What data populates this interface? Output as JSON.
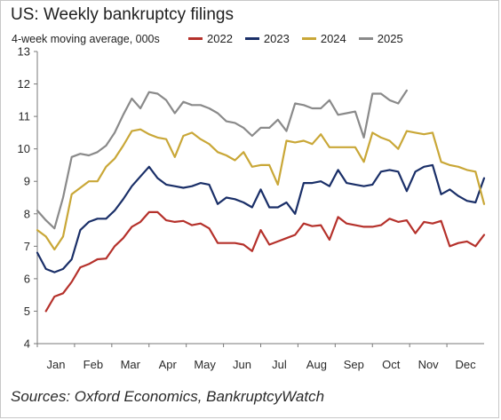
{
  "header": {
    "title": "US: Weekly bankruptcy filings",
    "subtitle": "4-week moving average, 000s"
  },
  "footer": {
    "source": "Sources: Oxford Economics, BankruptcyWatch"
  },
  "chart_data": {
    "type": "line",
    "title": "US: Weekly bankruptcy filings",
    "subtitle": "4-week moving average, 000s",
    "xlabel": "",
    "ylabel": "",
    "x_tick_labels": [
      "Jan",
      "Feb",
      "Mar",
      "Apr",
      "May",
      "Jun",
      "Jul",
      "Aug",
      "Sep",
      "Oct",
      "Nov",
      "Dec"
    ],
    "y_tick_labels": [
      "4",
      "5",
      "6",
      "7",
      "8",
      "9",
      "10",
      "11",
      "12",
      "13"
    ],
    "ylim": [
      4,
      13
    ],
    "xlim": [
      1,
      53
    ],
    "grid": false,
    "legend": "top",
    "series": [
      {
        "name": "2022",
        "color": "#b5312b",
        "x": [
          2,
          3,
          4,
          5,
          6,
          7,
          8,
          9,
          10,
          11,
          12,
          13,
          14,
          15,
          16,
          17,
          18,
          19,
          20,
          21,
          22,
          23,
          24,
          25,
          26,
          27,
          28,
          29,
          30,
          31,
          32,
          33,
          34,
          35,
          36,
          37,
          38,
          39,
          40,
          41,
          42,
          43,
          44,
          45,
          46,
          47,
          48,
          49,
          50,
          51,
          52,
          53
        ],
        "values": [
          5.0,
          5.45,
          5.55,
          5.9,
          6.35,
          6.45,
          6.6,
          6.62,
          7.0,
          7.25,
          7.6,
          7.75,
          8.05,
          8.05,
          7.8,
          7.75,
          7.78,
          7.65,
          7.7,
          7.55,
          7.1,
          7.1,
          7.1,
          7.05,
          6.85,
          7.5,
          7.05,
          7.15,
          7.25,
          7.35,
          7.7,
          7.62,
          7.65,
          7.2,
          7.9,
          7.7,
          7.65,
          7.6,
          7.6,
          7.65,
          7.85,
          7.75,
          7.8,
          7.4,
          7.75,
          7.7,
          7.78,
          7.0,
          7.1,
          7.15,
          7.0,
          7.35
        ]
      },
      {
        "name": "2023",
        "color": "#1a2f68",
        "x": [
          1,
          2,
          3,
          4,
          5,
          6,
          7,
          8,
          9,
          10,
          11,
          12,
          13,
          14,
          15,
          16,
          17,
          18,
          19,
          20,
          21,
          22,
          23,
          24,
          25,
          26,
          27,
          28,
          29,
          30,
          31,
          32,
          33,
          34,
          35,
          36,
          37,
          38,
          39,
          40,
          41,
          42,
          43,
          44,
          45,
          46,
          47,
          48,
          49,
          50,
          51,
          52,
          53
        ],
        "values": [
          6.8,
          6.3,
          6.2,
          6.3,
          6.6,
          7.5,
          7.75,
          7.85,
          7.85,
          8.1,
          8.45,
          8.85,
          9.15,
          9.45,
          9.1,
          8.9,
          8.85,
          8.8,
          8.85,
          8.95,
          8.9,
          8.3,
          8.5,
          8.45,
          8.35,
          8.2,
          8.75,
          8.2,
          8.2,
          8.35,
          8.0,
          8.95,
          8.95,
          9.0,
          8.85,
          9.35,
          8.95,
          8.9,
          8.85,
          8.9,
          9.3,
          9.35,
          9.3,
          8.7,
          9.3,
          9.45,
          9.5,
          8.6,
          8.75,
          8.55,
          8.4,
          8.35,
          9.1
        ]
      },
      {
        "name": "2024",
        "color": "#c9a737",
        "x": [
          1,
          2,
          3,
          4,
          5,
          6,
          7,
          8,
          9,
          10,
          11,
          12,
          13,
          14,
          15,
          16,
          17,
          18,
          19,
          20,
          21,
          22,
          23,
          24,
          25,
          26,
          27,
          28,
          29,
          30,
          31,
          32,
          33,
          34,
          35,
          36,
          37,
          38,
          39,
          40,
          41,
          42,
          43,
          44,
          45,
          46,
          47,
          48,
          49,
          50,
          51,
          52,
          53
        ],
        "values": [
          7.5,
          7.3,
          6.9,
          7.3,
          8.6,
          8.8,
          9.0,
          9.0,
          9.45,
          9.7,
          10.1,
          10.55,
          10.6,
          10.45,
          10.35,
          10.3,
          9.75,
          10.4,
          10.5,
          10.3,
          10.15,
          9.9,
          9.8,
          9.65,
          9.9,
          9.45,
          9.5,
          9.5,
          8.9,
          10.25,
          10.2,
          10.25,
          10.15,
          10.45,
          10.05,
          10.05,
          10.05,
          10.05,
          9.6,
          10.5,
          10.35,
          10.25,
          10.0,
          10.55,
          10.5,
          10.45,
          10.5,
          9.6,
          9.5,
          9.45,
          9.35,
          9.3,
          8.3
        ]
      },
      {
        "name": "2025",
        "color": "#8a8a8a",
        "x": [
          1,
          2,
          3,
          4,
          5,
          6,
          7,
          8,
          9,
          10,
          11,
          12,
          13,
          14,
          15,
          16,
          17,
          18,
          19,
          20,
          21,
          22,
          23,
          24,
          25,
          26,
          27,
          28,
          29,
          30,
          31,
          32,
          33,
          34,
          35,
          36,
          37,
          38,
          39,
          40,
          41,
          42,
          43,
          44,
          45,
          46
        ],
        "values": [
          8.1,
          7.8,
          7.55,
          8.5,
          9.75,
          9.85,
          9.8,
          9.9,
          10.1,
          10.5,
          11.05,
          11.55,
          11.25,
          11.75,
          11.7,
          11.5,
          11.1,
          11.45,
          11.35,
          11.35,
          11.25,
          11.1,
          10.85,
          10.8,
          10.65,
          10.4,
          10.65,
          10.65,
          10.9,
          10.55,
          11.4,
          11.35,
          11.25,
          11.25,
          11.5,
          11.05,
          11.1,
          11.15,
          10.35,
          11.7,
          11.7,
          11.5,
          11.4,
          11.8,
          null,
          null
        ]
      }
    ]
  }
}
